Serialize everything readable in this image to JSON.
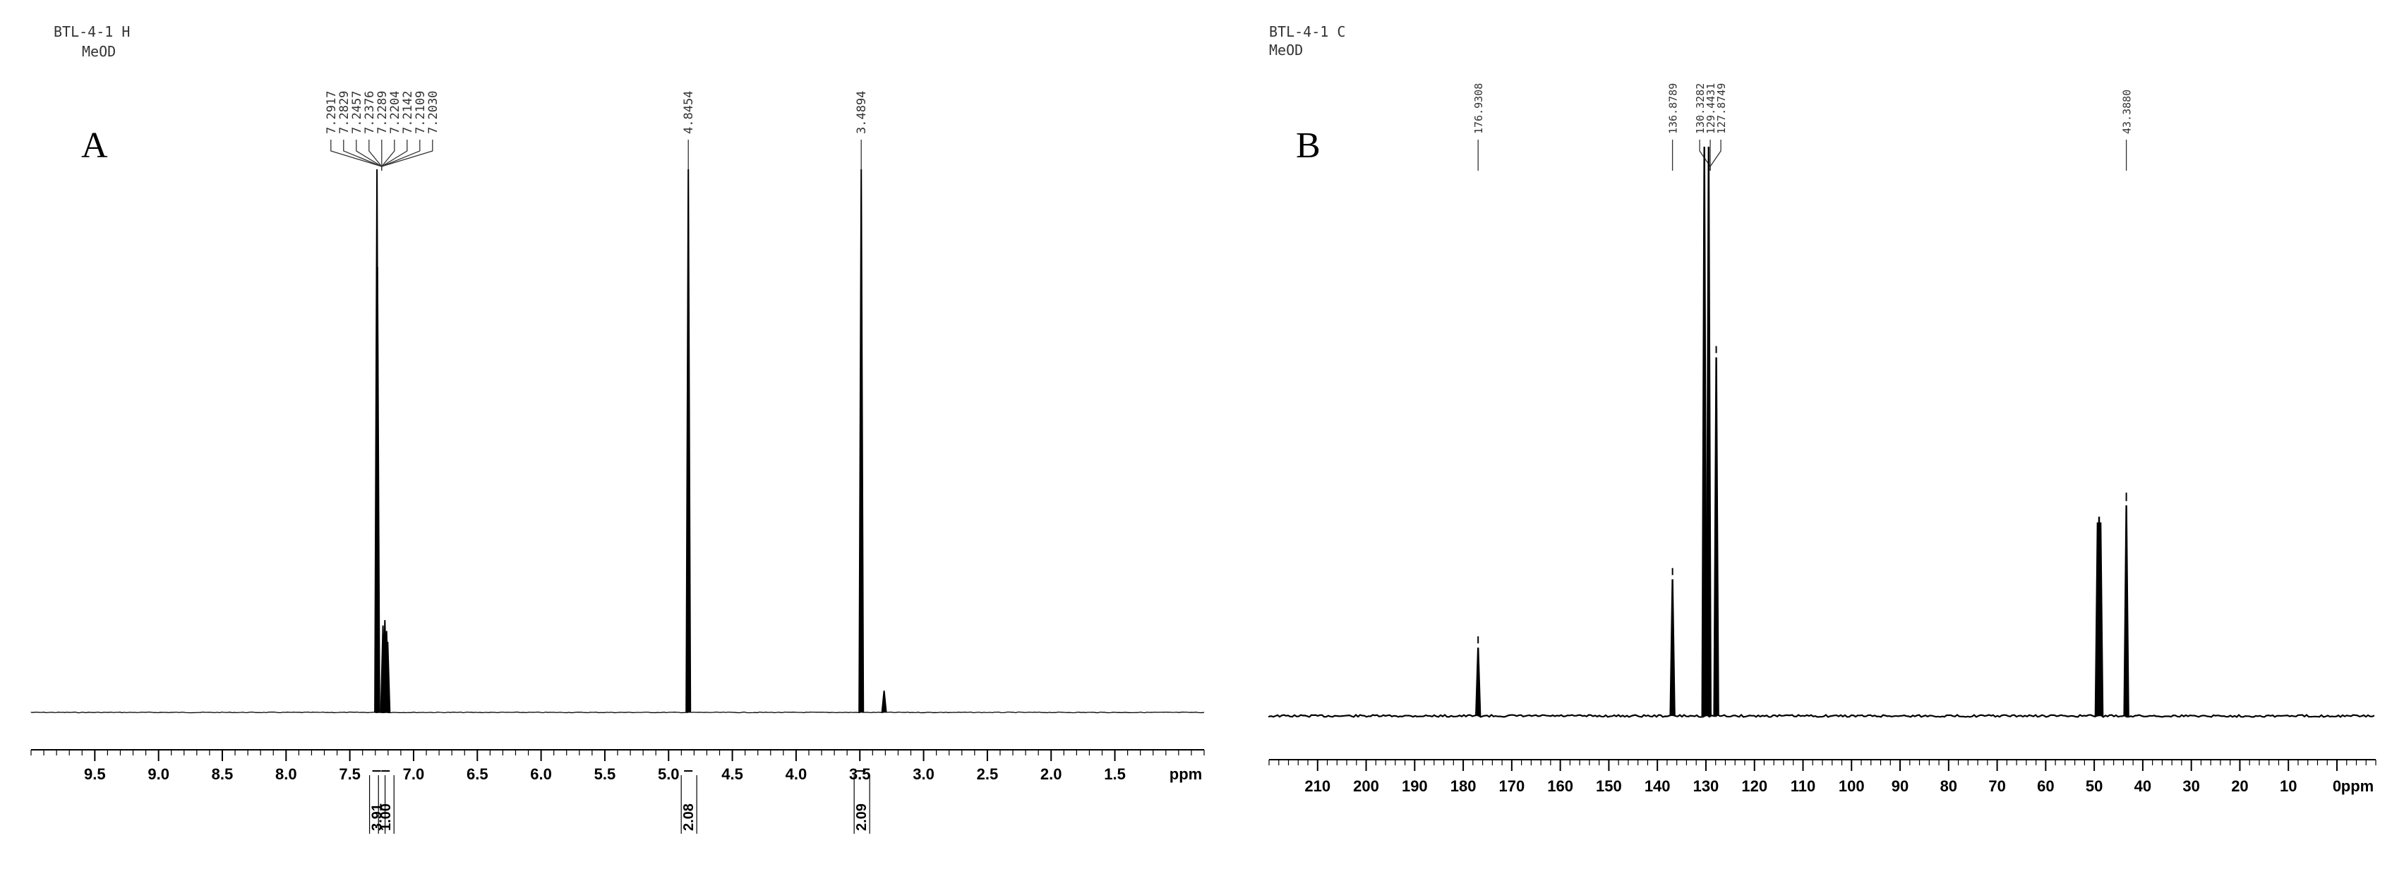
{
  "chart_data": [
    {
      "id": "A",
      "type": "nmr-spectrum",
      "panel_letter": "A",
      "header_lines": [
        "BTL-4-1 H",
        "MeOD"
      ],
      "x_unit": "ppm",
      "xlim": [
        10.0,
        0.8
      ],
      "reversed_axis": true,
      "ticks": [
        9.5,
        9.0,
        8.5,
        8.0,
        7.5,
        7.0,
        6.5,
        6.0,
        5.5,
        5.0,
        4.5,
        4.0,
        3.5,
        3.0,
        2.5,
        2.0,
        1.5
      ],
      "tick_labels": [
        "9.5",
        "9.0",
        "8.5",
        "8.0",
        "7.5",
        "7.0",
        "6.5",
        "6.0",
        "5.5",
        "5.0",
        "4.5",
        "4.0",
        "3.5",
        "3.0",
        "2.5",
        "2.0",
        "1.5"
      ],
      "peak_labels": [
        "7.2917",
        "7.2829",
        "7.2457",
        "7.2376",
        "7.2289",
        "7.2204",
        "7.2142",
        "7.2109",
        "7.2030",
        "4.8454",
        "3.4894"
      ],
      "peak_label_groups": [
        {
          "labels_idx": [
            0,
            1,
            2,
            3,
            4,
            5,
            6,
            7,
            8
          ],
          "target_ppm": 7.25
        },
        {
          "labels_idx": [
            9
          ],
          "target_ppm": 4.8454
        },
        {
          "labels_idx": [
            10
          ],
          "target_ppm": 3.4894
        }
      ],
      "peaks": [
        {
          "ppm": 7.287,
          "height": 1.0
        },
        {
          "ppm": 7.283,
          "height": 0.82
        },
        {
          "ppm": 7.24,
          "height": 0.16
        },
        {
          "ppm": 7.225,
          "height": 0.17
        },
        {
          "ppm": 7.212,
          "height": 0.15
        },
        {
          "ppm": 7.203,
          "height": 0.13
        },
        {
          "ppm": 4.8454,
          "height": 1.0
        },
        {
          "ppm": 3.4894,
          "height": 1.0
        },
        {
          "ppm": 3.31,
          "height": 0.04
        }
      ],
      "integrals": [
        {
          "value": "3.91",
          "ppm": 7.29
        },
        {
          "value": "1.00",
          "ppm": 7.22
        },
        {
          "value": "2.08",
          "ppm": 4.8454
        },
        {
          "value": "2.09",
          "ppm": 3.4894
        }
      ]
    },
    {
      "id": "B",
      "type": "nmr-spectrum",
      "panel_letter": "B",
      "header_lines": [
        "BTL-4-1 C",
        "MeOD"
      ],
      "x_unit": "ppm",
      "xlim": [
        220,
        -8
      ],
      "reversed_axis": true,
      "ticks": [
        210,
        200,
        190,
        180,
        170,
        160,
        150,
        140,
        130,
        120,
        110,
        100,
        90,
        80,
        70,
        60,
        50,
        40,
        30,
        20,
        10,
        0
      ],
      "tick_labels": [
        "210",
        "200",
        "190",
        "180",
        "170",
        "160",
        "150",
        "140",
        "130",
        "120",
        "110",
        "100",
        "90",
        "80",
        "70",
        "60",
        "50",
        "40",
        "30",
        "20",
        "10",
        "0"
      ],
      "peak_labels": [
        "176.9308",
        "136.8789",
        "130.3282",
        "129.4431",
        "127.8749",
        "43.3880"
      ],
      "peak_label_groups": [
        {
          "labels_idx": [
            0
          ],
          "target_ppm": 176.9308
        },
        {
          "labels_idx": [
            1
          ],
          "target_ppm": 136.8789
        },
        {
          "labels_idx": [
            2,
            3,
            4
          ],
          "target_ppm": 129.1
        },
        {
          "labels_idx": [
            5
          ],
          "target_ppm": 43.388
        }
      ],
      "peaks": [
        {
          "ppm": 176.9308,
          "height": 0.12
        },
        {
          "ppm": 136.8789,
          "height": 0.24
        },
        {
          "ppm": 130.3282,
          "height": 1.0
        },
        {
          "ppm": 129.4431,
          "height": 1.0
        },
        {
          "ppm": 127.8749,
          "height": 0.63
        },
        {
          "ppm": 49.3,
          "height": 0.34
        },
        {
          "ppm": 49.0,
          "height": 0.35
        },
        {
          "ppm": 48.7,
          "height": 0.34
        },
        {
          "ppm": 43.388,
          "height": 0.37
        }
      ],
      "integrals": []
    }
  ]
}
